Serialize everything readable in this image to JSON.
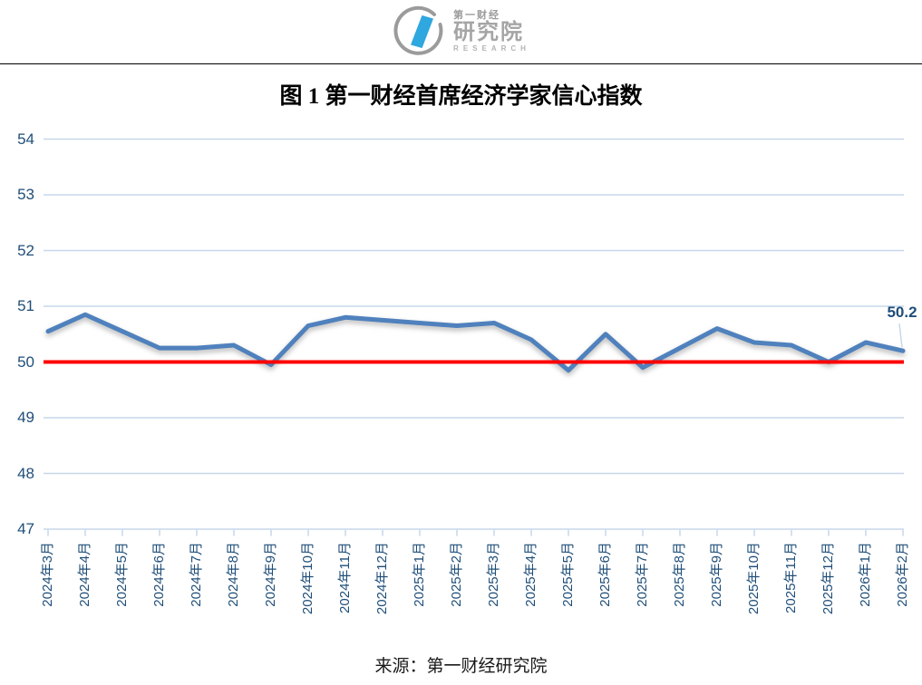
{
  "header": {
    "logo": {
      "brand_small": "第一财经",
      "brand_big": "研究院",
      "brand_en": "RESEARCH"
    }
  },
  "title": "图 1 第一财经首席经济学家信心指数",
  "source": "来源：第一财经研究院",
  "colors": {
    "line": "#4f81bd",
    "reference": "#ff0000",
    "grid": "#c7d7ea",
    "axis_text": "#1f4e79",
    "logo_blue": "#2fa7df",
    "logo_gray": "#9b9b9b"
  },
  "chart_data": {
    "type": "line",
    "title": "图 1 第一财经首席经济学家信心指数",
    "categories": [
      "2024年3月",
      "2024年4月",
      "2024年5月",
      "2024年6月",
      "2024年7月",
      "2024年8月",
      "2024年9月",
      "2024年10月",
      "2024年11月",
      "2024年12月",
      "2025年1月",
      "2025年2月",
      "2025年3月",
      "2025年4月",
      "2025年5月",
      "2025年6月",
      "2025年7月",
      "2025年8月",
      "2025年9月",
      "2025年10月",
      "2025年11月",
      "2025年12月",
      "2026年1月",
      "2026年2月"
    ],
    "values": [
      50.55,
      50.85,
      50.55,
      50.25,
      50.25,
      50.3,
      49.95,
      50.65,
      50.8,
      50.75,
      50.7,
      50.65,
      50.7,
      50.4,
      49.85,
      50.5,
      49.9,
      50.25,
      50.6,
      50.35,
      50.3,
      50.0,
      50.35,
      50.2
    ],
    "ylim": [
      47,
      54
    ],
    "yticks": [
      54,
      53,
      52,
      51,
      50,
      49,
      48,
      47
    ],
    "grid": true,
    "legend": false,
    "reference_line": {
      "value": 50,
      "color": "#ff0000"
    },
    "end_label": "50.2",
    "xlabel": "",
    "ylabel": ""
  }
}
